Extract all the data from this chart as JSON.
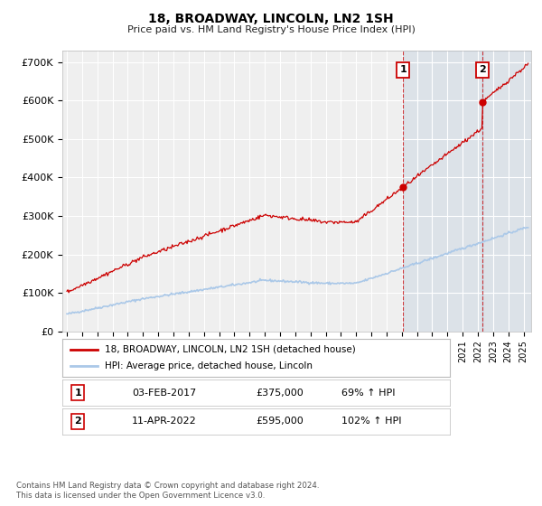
{
  "title": "18, BROADWAY, LINCOLN, LN2 1SH",
  "subtitle": "Price paid vs. HM Land Registry's House Price Index (HPI)",
  "ylabel_ticks": [
    "£0",
    "£100K",
    "£200K",
    "£300K",
    "£400K",
    "£500K",
    "£600K",
    "£700K"
  ],
  "ytick_values": [
    0,
    100000,
    200000,
    300000,
    400000,
    500000,
    600000,
    700000
  ],
  "ylim": [
    0,
    730000
  ],
  "xlim_start": 1994.7,
  "xlim_end": 2025.5,
  "line1_color": "#cc0000",
  "line2_color": "#aac8e8",
  "sale1_x": 2017.08,
  "sale1_y": 375000,
  "sale2_x": 2022.28,
  "sale2_y": 595000,
  "annotation1_label": "1",
  "annotation2_label": "2",
  "annotation1_date": "03-FEB-2017",
  "annotation1_price": "£375,000",
  "annotation1_hpi": "69% ↑ HPI",
  "annotation2_date": "11-APR-2022",
  "annotation2_price": "£595,000",
  "annotation2_hpi": "102% ↑ HPI",
  "legend_line1": "18, BROADWAY, LINCOLN, LN2 1SH (detached house)",
  "legend_line2": "HPI: Average price, detached house, Lincoln",
  "footnote": "Contains HM Land Registry data © Crown copyright and database right 2024.\nThis data is licensed under the Open Government Licence v3.0.",
  "background_color": "#ffffff",
  "plot_bg_color": "#efefef",
  "grid_color": "#ffffff",
  "shaded_region1_start": 2017.08,
  "shaded_region1_end": 2022.28,
  "shaded_region2_start": 2022.28,
  "shaded_region2_end": 2025.5
}
